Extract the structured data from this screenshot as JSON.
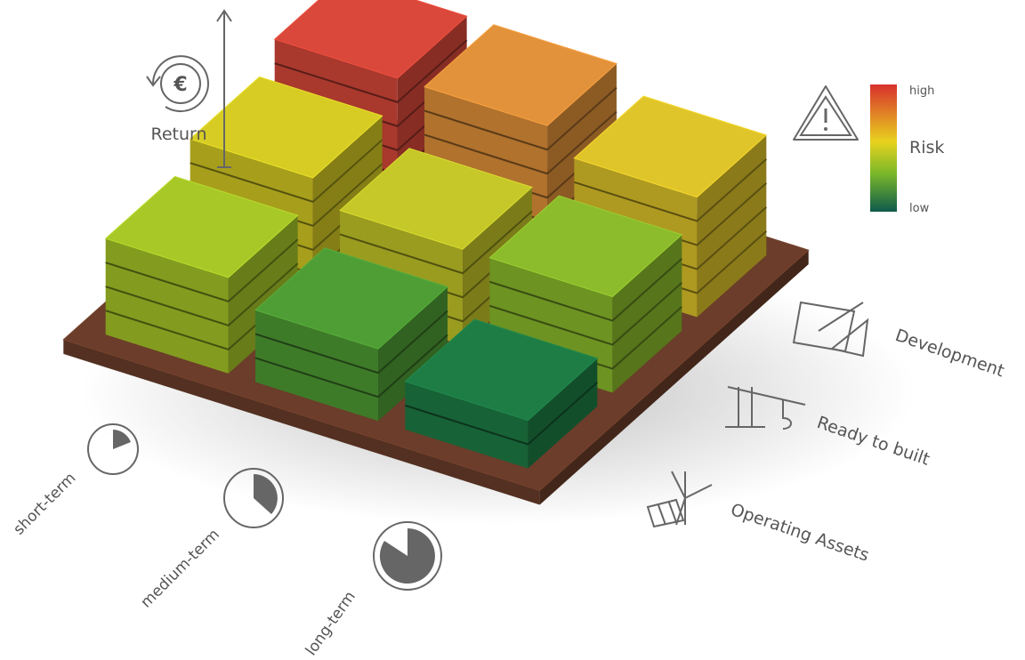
{
  "return_label": "Return",
  "currency_symbol": "€",
  "risk_legend": {
    "high": "high",
    "title": "Risk",
    "low": "low"
  },
  "project_stages": [
    "Development",
    "Ready to built",
    "Operating Assets"
  ],
  "time_horizons": [
    "short-term",
    "medium-term",
    "long-term"
  ]
}
